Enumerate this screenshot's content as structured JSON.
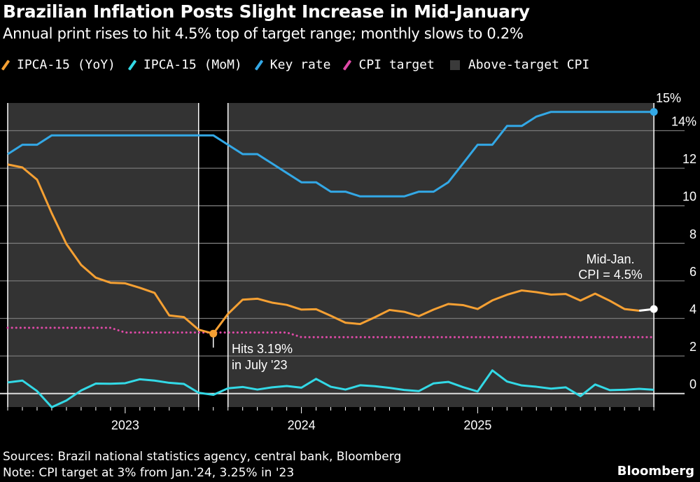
{
  "title": "Brazilian Inflation Posts Slight Increase in Mid-January",
  "subtitle": "Annual print rises to hit 4.5% top of target range; monthly slows to 0.2%",
  "footer": {
    "sources": "Sources: Brazil national statistics agency, central bank, Bloomberg",
    "note": "Note: CPI target at 3% from Jan.'24, 3.25% in '23",
    "brand": "Bloomberg"
  },
  "chart_data": {
    "type": "line",
    "x_start": "2022-05",
    "x_end": "2026-01",
    "x_tick_labels": [
      {
        "label": "2023",
        "month": "2023-01"
      },
      {
        "label": "2024",
        "month": "2024-01"
      },
      {
        "label": "2025",
        "month": "2025-01"
      }
    ],
    "ylim": [
      -0.8,
      15.5
    ],
    "y_ticks": [
      {
        "v": 0,
        "label": "0"
      },
      {
        "v": 2,
        "label": "2"
      },
      {
        "v": 4,
        "label": "4"
      },
      {
        "v": 6,
        "label": "6"
      },
      {
        "v": 8,
        "label": "8"
      },
      {
        "v": 10,
        "label": "10"
      },
      {
        "v": 12,
        "label": "12"
      },
      {
        "v": 14,
        "label": "14%"
      }
    ],
    "grid": true,
    "legend_position": "top",
    "series": [
      {
        "name": "IPCA-15 (YoY)",
        "color": "#f5a033",
        "style": "solid",
        "values": [
          12.2,
          12.04,
          11.39,
          9.6,
          7.96,
          6.85,
          6.17,
          5.9,
          5.87,
          5.63,
          5.36,
          4.16,
          4.07,
          3.4,
          3.19,
          4.24,
          5.0,
          5.05,
          4.84,
          4.72,
          4.47,
          4.49,
          4.14,
          3.77,
          3.7,
          4.06,
          4.45,
          4.35,
          4.12,
          4.47,
          4.77,
          4.71,
          4.5,
          4.96,
          5.26,
          5.49,
          5.4,
          5.27,
          5.3,
          4.95,
          5.32,
          4.94,
          4.5,
          4.41,
          4.5
        ]
      },
      {
        "name": "IPCA-15 (MoM)",
        "color": "#33d9e6",
        "style": "solid",
        "values": [
          0.59,
          0.69,
          0.13,
          -0.73,
          -0.37,
          0.16,
          0.53,
          0.52,
          0.55,
          0.76,
          0.69,
          0.57,
          0.51,
          0.04,
          -0.07,
          0.28,
          0.35,
          0.21,
          0.33,
          0.4,
          0.31,
          0.78,
          0.36,
          0.21,
          0.44,
          0.39,
          0.3,
          0.19,
          0.13,
          0.54,
          0.62,
          0.34,
          0.11,
          1.23,
          0.64,
          0.43,
          0.36,
          0.26,
          0.33,
          -0.14,
          0.48,
          0.18,
          0.2,
          0.25,
          0.2
        ]
      },
      {
        "name": "Key rate",
        "color": "#33a8e6",
        "style": "solid",
        "values": [
          12.75,
          13.25,
          13.25,
          13.75,
          13.75,
          13.75,
          13.75,
          13.75,
          13.75,
          13.75,
          13.75,
          13.75,
          13.75,
          13.75,
          13.75,
          13.25,
          12.75,
          12.75,
          12.25,
          11.75,
          11.25,
          11.25,
          10.75,
          10.75,
          10.5,
          10.5,
          10.5,
          10.5,
          10.75,
          10.75,
          11.25,
          12.25,
          13.25,
          13.25,
          14.25,
          14.25,
          14.75,
          15,
          15,
          15,
          15,
          15,
          15,
          15,
          15
        ]
      },
      {
        "name": "CPI target",
        "color": "#e04aa8",
        "style": "dotted",
        "values": [
          3.5,
          3.5,
          3.5,
          3.5,
          3.5,
          3.5,
          3.5,
          3.5,
          3.25,
          3.25,
          3.25,
          3.25,
          3.25,
          3.25,
          3.25,
          3.25,
          3.25,
          3.25,
          3.25,
          3.25,
          3,
          3,
          3,
          3,
          3,
          3,
          3,
          3,
          3,
          3,
          3,
          3,
          3,
          3,
          3,
          3,
          3,
          3,
          3,
          3,
          3,
          3,
          3,
          3,
          3
        ]
      }
    ],
    "shaded": {
      "name": "Above-target CPI",
      "color": "#333333",
      "periods": [
        [
          "2022-05",
          "2023-06"
        ],
        [
          "2023-08",
          "2026-01"
        ]
      ]
    },
    "annotations": {
      "low_line1": "Hits 3.19%",
      "low_line2": "in July '23",
      "end_line1": "Mid-Jan.",
      "end_line2": "CPI = 4.5%",
      "key_rate_end": "15%"
    }
  }
}
